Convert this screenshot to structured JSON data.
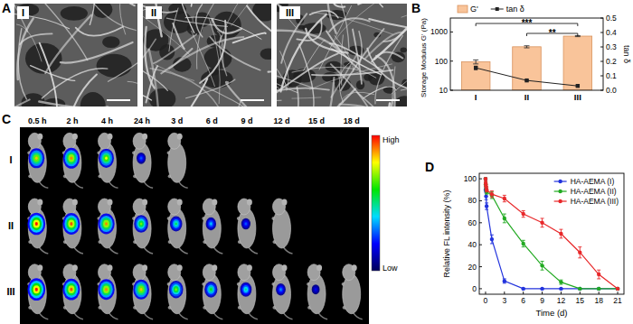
{
  "figure": {
    "panel_labels": [
      "A",
      "B",
      "C",
      "D"
    ],
    "sem": {
      "labels": [
        "I",
        "II",
        "III"
      ]
    },
    "imaging": {
      "timepoints": [
        "0.5 h",
        "2 h",
        "4 h",
        "24 h",
        "3 d",
        "6 d",
        "9 d",
        "12 d",
        "15 d",
        "18 d"
      ],
      "rows": [
        {
          "label": "I",
          "signal": [
            0.85,
            0.9,
            0.8,
            0.3,
            0
          ]
        },
        {
          "label": "II",
          "signal": [
            1,
            0.95,
            0.9,
            0.7,
            0.55,
            0.4,
            0.3,
            0
          ]
        },
        {
          "label": "III",
          "signal": [
            1,
            0.95,
            0.9,
            0.85,
            0.7,
            0.6,
            0.5,
            0.35,
            0.2,
            0
          ]
        }
      ],
      "colorbar": {
        "high": "High",
        "low": "Low"
      }
    }
  },
  "chart_data": [
    {
      "type": "bar",
      "categories": [
        "I",
        "II",
        "III"
      ],
      "series": [
        {
          "name": "G'",
          "type": "bar",
          "color": "#f9c49a",
          "values": [
            95,
            310,
            720
          ],
          "errors": [
            15,
            25,
            30
          ]
        },
        {
          "name": "tan δ",
          "type": "line",
          "color": "#222222",
          "axis": "y2",
          "marker": "square",
          "values": [
            0.155,
            0.068,
            0.03
          ],
          "errors": [
            0.012,
            0.004,
            0.003
          ]
        }
      ],
      "y_label": "Storage Modulus G' (Pa)",
      "y2_label": "tan δ",
      "log": "y",
      "ylim": [
        10,
        3000
      ],
      "yticks": [
        10,
        100,
        1000
      ],
      "y2lim": [
        0,
        0.5
      ],
      "y2ticks": [
        {
          "value": 0,
          "label": "0.0"
        },
        0.1,
        0.2,
        0.3,
        0.4,
        0.5
      ],
      "legend": "top",
      "significance": [
        {
          "label": "***",
          "categories": [
            "I",
            "III"
          ]
        },
        {
          "label": "**",
          "categories": [
            "II",
            "III"
          ]
        }
      ]
    },
    {
      "type": "line",
      "x_label": "Time (d)",
      "y_label": "Relative FL intensity (%)",
      "x": [
        0,
        0.021,
        0.083,
        0.167,
        1,
        3,
        6,
        9,
        12,
        15,
        18,
        21
      ],
      "series": [
        {
          "name": "HA-AEMA (I)",
          "color": "#2233dd",
          "marker": "circle",
          "values": [
            100,
            90,
            84,
            75,
            45,
            7,
            0,
            0,
            0,
            0,
            0,
            0
          ],
          "errors": [
            0,
            2,
            3,
            3,
            4,
            2,
            0,
            0,
            0,
            0,
            0,
            0
          ]
        },
        {
          "name": "HA-AEMA (II)",
          "color": "#22aa22",
          "marker": "circle",
          "values": [
            100,
            95,
            91,
            88,
            85,
            64,
            41,
            21,
            6,
            0,
            0,
            0
          ],
          "errors": [
            0,
            2,
            2,
            2,
            3,
            4,
            3,
            4,
            2,
            0,
            0,
            0
          ]
        },
        {
          "name": "HA-AEMA (III)",
          "color": "#e8282a",
          "marker": "circle",
          "values": [
            100,
            96,
            93,
            90,
            86,
            82,
            68,
            60,
            50,
            33,
            13,
            0
          ],
          "errors": [
            0,
            2,
            2,
            2,
            3,
            3,
            3,
            4,
            4,
            5,
            4,
            0
          ]
        }
      ],
      "xlim": [
        -1,
        22
      ],
      "ylim": [
        -5,
        105
      ],
      "xticks": [
        0,
        3,
        6,
        9,
        12,
        15,
        18,
        21
      ],
      "yticks": [
        0,
        20,
        40,
        60,
        80,
        100
      ],
      "legend": "upper right"
    }
  ]
}
